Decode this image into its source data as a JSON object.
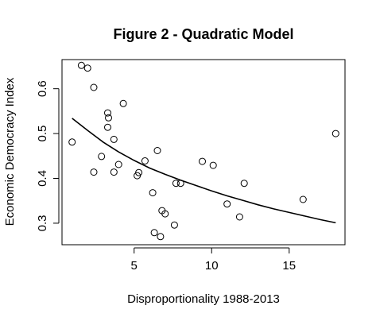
{
  "chart_data": {
    "type": "scatter",
    "title": "Figure 2 - Quadratic Model",
    "xlabel": "Disproportionality 1988-2013",
    "ylabel": "Economic Democracy Index",
    "xlim": [
      0.35,
      18.6
    ],
    "ylim": [
      0.252,
      0.665
    ],
    "xticks": [
      5,
      10,
      15
    ],
    "yticks": [
      0.3,
      0.4,
      0.5,
      0.6
    ],
    "ytick_labels": [
      "0.3",
      "0.4",
      "0.5",
      "0.6"
    ],
    "xtick_labels": [
      "5",
      "10",
      "15"
    ],
    "grid": false,
    "legend": "none",
    "points": [
      {
        "x": 1.6,
        "y": 0.652
      },
      {
        "x": 2.0,
        "y": 0.646
      },
      {
        "x": 2.4,
        "y": 0.603
      },
      {
        "x": 1.0,
        "y": 0.481
      },
      {
        "x": 2.4,
        "y": 0.414
      },
      {
        "x": 2.9,
        "y": 0.449
      },
      {
        "x": 3.3,
        "y": 0.546
      },
      {
        "x": 3.35,
        "y": 0.535
      },
      {
        "x": 3.3,
        "y": 0.514
      },
      {
        "x": 3.7,
        "y": 0.487
      },
      {
        "x": 3.7,
        "y": 0.414
      },
      {
        "x": 4.0,
        "y": 0.431
      },
      {
        "x": 4.3,
        "y": 0.567
      },
      {
        "x": 5.2,
        "y": 0.406
      },
      {
        "x": 5.3,
        "y": 0.413
      },
      {
        "x": 5.7,
        "y": 0.439
      },
      {
        "x": 6.2,
        "y": 0.368
      },
      {
        "x": 6.3,
        "y": 0.279
      },
      {
        "x": 6.5,
        "y": 0.462
      },
      {
        "x": 6.7,
        "y": 0.27
      },
      {
        "x": 6.8,
        "y": 0.328
      },
      {
        "x": 7.0,
        "y": 0.321
      },
      {
        "x": 7.6,
        "y": 0.296
      },
      {
        "x": 7.7,
        "y": 0.389
      },
      {
        "x": 8.0,
        "y": 0.389
      },
      {
        "x": 9.4,
        "y": 0.438
      },
      {
        "x": 10.1,
        "y": 0.429
      },
      {
        "x": 11.0,
        "y": 0.343
      },
      {
        "x": 11.8,
        "y": 0.314
      },
      {
        "x": 12.1,
        "y": 0.389
      },
      {
        "x": 15.9,
        "y": 0.353
      },
      {
        "x": 18.0,
        "y": 0.5
      }
    ],
    "fit_line": {
      "x": [
        1.0,
        2.0,
        3.0,
        4.0,
        5.0,
        6.0,
        7.0,
        8.0,
        9.0,
        10.0,
        11.0,
        12.0,
        13.0,
        14.0,
        15.0,
        16.0,
        17.0,
        18.0
      ],
      "y": [
        0.534,
        0.507,
        0.481,
        0.459,
        0.44,
        0.423,
        0.409,
        0.396,
        0.384,
        0.372,
        0.361,
        0.351,
        0.341,
        0.332,
        0.324,
        0.316,
        0.308,
        0.301
      ]
    }
  }
}
